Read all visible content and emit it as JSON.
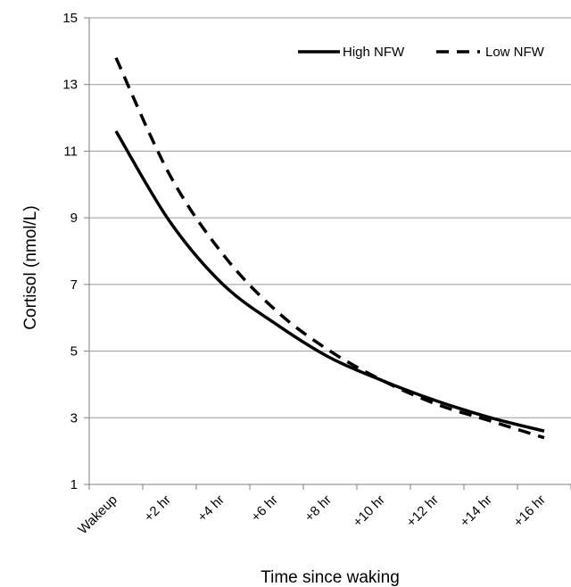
{
  "chart_data": {
    "type": "line",
    "xlabel": "Time since waking",
    "ylabel": "Cortisol (nmol/L)",
    "categories": [
      "Wakeup",
      "+2 hr",
      "+4 hr",
      "+6 hr",
      "+8 hr",
      "+10 hr",
      "+12 hr",
      "+14 hr",
      "+16 hr"
    ],
    "ylim": [
      1,
      15
    ],
    "yticks": [
      1,
      3,
      5,
      7,
      9,
      11,
      13,
      15
    ],
    "grid": true,
    "legend_position": "top-right",
    "series": [
      {
        "name": "High NFW",
        "style": "solid",
        "color": "#000000",
        "x": [
          0,
          1,
          2,
          3,
          4,
          5,
          6,
          7,
          8
        ],
        "y": [
          11.6,
          8.9,
          7.0,
          5.8,
          4.8,
          4.1,
          3.5,
          3.0,
          2.6
        ]
      },
      {
        "name": "Low NFW",
        "style": "dashed",
        "color": "#000000",
        "x": [
          0,
          1,
          2,
          3,
          4,
          5,
          6,
          7,
          8
        ],
        "y": [
          13.8,
          10.3,
          7.9,
          6.2,
          5.0,
          4.1,
          3.4,
          2.9,
          2.4
        ]
      }
    ]
  }
}
